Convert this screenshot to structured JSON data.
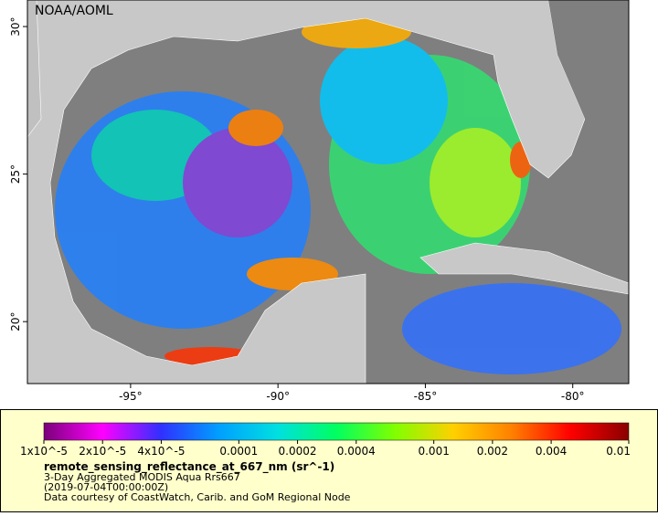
{
  "map": {
    "type": "map",
    "credit": "NOAA/AOML",
    "xlim": [
      -98.5,
      -78.1
    ],
    "ylim": [
      17.9,
      30.9
    ],
    "xticks": [
      {
        "value": -95,
        "label": "-95°"
      },
      {
        "value": -90,
        "label": "-90°"
      },
      {
        "value": -85,
        "label": "-85°"
      },
      {
        "value": -80,
        "label": "-80°"
      }
    ],
    "yticks": [
      {
        "value": 20,
        "label": "20°"
      },
      {
        "value": 25,
        "label": "25°"
      },
      {
        "value": 30,
        "label": "30°"
      }
    ],
    "colorbar": {
      "scale": "log",
      "lim": [
        1e-05,
        0.01
      ],
      "colors": [
        "#7a007a",
        "#ff00ff",
        "#3030ff",
        "#00a0ff",
        "#00e0e0",
        "#00ff60",
        "#80ff00",
        "#ffd000",
        "#ff8000",
        "#ff0000",
        "#8a0000"
      ],
      "ticks": [
        {
          "value": 1e-05,
          "label": "1x10^-5"
        },
        {
          "value": 2e-05,
          "label": "2x10^-5"
        },
        {
          "value": 4e-05,
          "label": "4x10^-5"
        },
        0.0001,
        0.0002,
        0.0004,
        0.001,
        0.002,
        0.004,
        0.01
      ]
    },
    "legend": {
      "title": "remote_sensing_reflectance_at_667_nm (sr^-1)",
      "lines": [
        "3-Day Aggregated MODIS Aqua Rrs667",
        "(2019-07-04T00:00:00Z)",
        "Data courtesy of CoastWatch, Carib. and GoM Regional Node"
      ]
    }
  }
}
